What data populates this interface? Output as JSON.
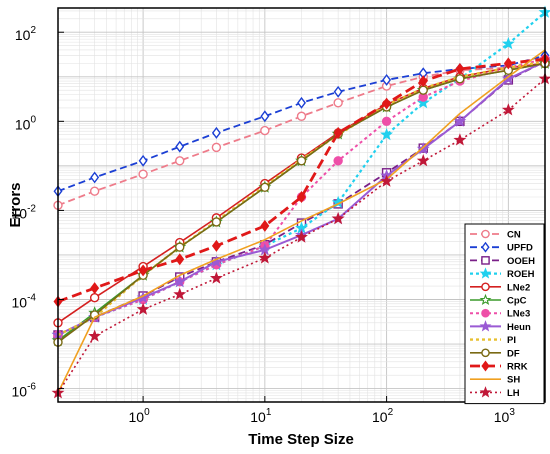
{
  "chart_data": {
    "type": "line",
    "xlabel": "Time Step Size",
    "ylabel": "Errors",
    "xscale": "log",
    "yscale": "log",
    "xlim": [
      0.2,
      2000
    ],
    "ylim": [
      5e-07,
      350
    ],
    "grid": true,
    "legend_position": "bottom-right",
    "x_ticks": [
      {
        "value": 1,
        "label": "10",
        "exp": "0"
      },
      {
        "value": 10,
        "label": "10",
        "exp": "1"
      },
      {
        "value": 100,
        "label": "10",
        "exp": "2"
      },
      {
        "value": 1000,
        "label": "10",
        "exp": "3"
      }
    ],
    "y_ticks": [
      {
        "value": 1e-06,
        "label": "10",
        "exp": "-6"
      },
      {
        "value": 0.0001,
        "label": "10",
        "exp": "-4"
      },
      {
        "value": 0.01,
        "label": "10",
        "exp": "-2"
      },
      {
        "value": 1,
        "label": "10",
        "exp": "0"
      },
      {
        "value": 100,
        "label": "10",
        "exp": "2"
      }
    ],
    "x": [
      0.2,
      0.4,
      1,
      2,
      4,
      10,
      20,
      40,
      100,
      200,
      400,
      1000,
      2000
    ],
    "series": [
      {
        "name": "CN",
        "color": "#ee7b8a",
        "dash": "7,4",
        "marker": "circle",
        "filled": false,
        "width": 1.8,
        "values": [
          0.013,
          0.027,
          0.065,
          0.13,
          0.26,
          0.62,
          1.3,
          2.6,
          6.2,
          10,
          14,
          16,
          20
        ]
      },
      {
        "name": "UPFD",
        "color": "#1b3fd4",
        "dash": "7,4",
        "marker": "diamond",
        "filled": false,
        "width": 1.8,
        "values": [
          0.027,
          0.055,
          0.13,
          0.27,
          0.55,
          1.3,
          2.6,
          4.6,
          8.5,
          12,
          15,
          18,
          30
        ]
      },
      {
        "name": "OOEH",
        "color": "#7a2088",
        "dash": "7,4",
        "marker": "square",
        "filled": false,
        "width": 1.8,
        "values": [
          1.6e-05,
          4e-05,
          0.00012,
          0.00032,
          0.0007,
          0.0017,
          0.0052,
          0.014,
          0.07,
          0.25,
          1,
          8.5,
          22
        ]
      },
      {
        "name": "ROEH",
        "color": "#20d0ee",
        "dash": "3,3",
        "marker": "star",
        "filled": true,
        "width": 2.2,
        "values": [
          1.6e-05,
          4e-05,
          0.0001,
          0.00025,
          0.0006,
          0.0016,
          0.004,
          0.015,
          0.5,
          2.6,
          9,
          55,
          280
        ]
      },
      {
        "name": "LNe2",
        "color": "#d42020",
        "dash": "",
        "marker": "circle",
        "filled": false,
        "width": 1.6,
        "values": [
          3e-05,
          0.00011,
          0.00055,
          0.0019,
          0.0068,
          0.04,
          0.15,
          0.55,
          2.4,
          5.5,
          10,
          16,
          20
        ]
      },
      {
        "name": "CpC",
        "color": "#3a9a2a",
        "dash": "",
        "marker": "star",
        "filled": false,
        "width": 1.6,
        "values": [
          1.2e-05,
          5e-05,
          0.00035,
          0.0015,
          0.0055,
          0.033,
          0.13,
          0.52,
          2.1,
          5,
          9,
          14,
          20
        ]
      },
      {
        "name": "LNe3",
        "color": "#ee4fa8",
        "dash": "3,3",
        "marker": "circle",
        "filled": true,
        "width": 2,
        "values": [
          1.6e-05,
          4e-05,
          0.0001,
          0.00025,
          0.0006,
          0.0016,
          0.02,
          0.13,
          1,
          3.5,
          8,
          16,
          25
        ]
      },
      {
        "name": "Heun",
        "color": "#9a5ad4",
        "dash": "",
        "marker": "star",
        "filled": true,
        "width": 2,
        "values": [
          1.6e-05,
          4e-05,
          0.00011,
          0.00025,
          0.0007,
          0.0013,
          0.0028,
          0.0065,
          0.06,
          0.24,
          1,
          9,
          22
        ]
      },
      {
        "name": "PI",
        "color": "#e8c030",
        "dash": "3,3",
        "marker": "none",
        "filled": false,
        "width": 2.4,
        "values": [
          1.6e-05,
          4e-05,
          0.00035,
          0.0015,
          0.0058,
          0.035,
          0.14,
          0.5,
          2.3,
          5.5,
          10,
          16,
          22
        ]
      },
      {
        "name": "DF",
        "color": "#7a6a14",
        "dash": "",
        "marker": "circle",
        "filled": false,
        "width": 1.6,
        "values": [
          1.1e-05,
          4.5e-05,
          0.00035,
          0.0015,
          0.0055,
          0.033,
          0.13,
          0.52,
          2.1,
          5,
          9,
          14,
          20
        ]
      },
      {
        "name": "RRK",
        "color": "#e01818",
        "dash": "10,5",
        "marker": "diamond",
        "filled": true,
        "width": 2.8,
        "values": [
          9e-05,
          0.00018,
          0.00045,
          0.0008,
          0.0016,
          0.0045,
          0.02,
          0.55,
          2.5,
          8,
          15,
          20,
          25
        ]
      },
      {
        "name": "SH",
        "color": "#f0a020",
        "dash": "",
        "marker": "none",
        "filled": false,
        "width": 1.6,
        "values": [
          8e-07,
          4e-05,
          0.00012,
          0.00035,
          0.0008,
          0.0022,
          0.0058,
          0.014,
          0.05,
          0.26,
          1.5,
          10,
          40
        ]
      },
      {
        "name": "LH",
        "color": "#c01838",
        "dash": "2,3",
        "marker": "star",
        "filled": true,
        "width": 1.6,
        "values": [
          8e-07,
          1.5e-05,
          6e-05,
          0.00013,
          0.0003,
          0.00085,
          0.0025,
          0.0065,
          0.045,
          0.13,
          0.38,
          1.8,
          9
        ]
      }
    ]
  }
}
